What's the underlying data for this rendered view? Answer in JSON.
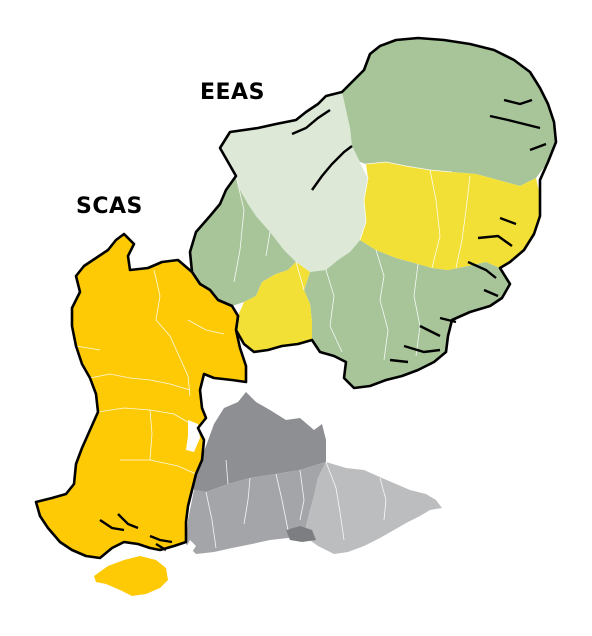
{
  "labels": {
    "eeas": "EEAS",
    "scas": "SCAS"
  },
  "colors": {
    "background": "#ffffff",
    "east_green": "#a8c59a",
    "east_light_green": "#dde8d7",
    "east_yellow": "#f3e036",
    "south_central_yellow": "#fdca05",
    "south_east_dark_grey": "#8e8f93",
    "south_east_mid_grey": "#a4a5a8",
    "south_east_light_grey": "#bcbdbf",
    "outline": "#000000",
    "internal_border": "#ffffff"
  }
}
